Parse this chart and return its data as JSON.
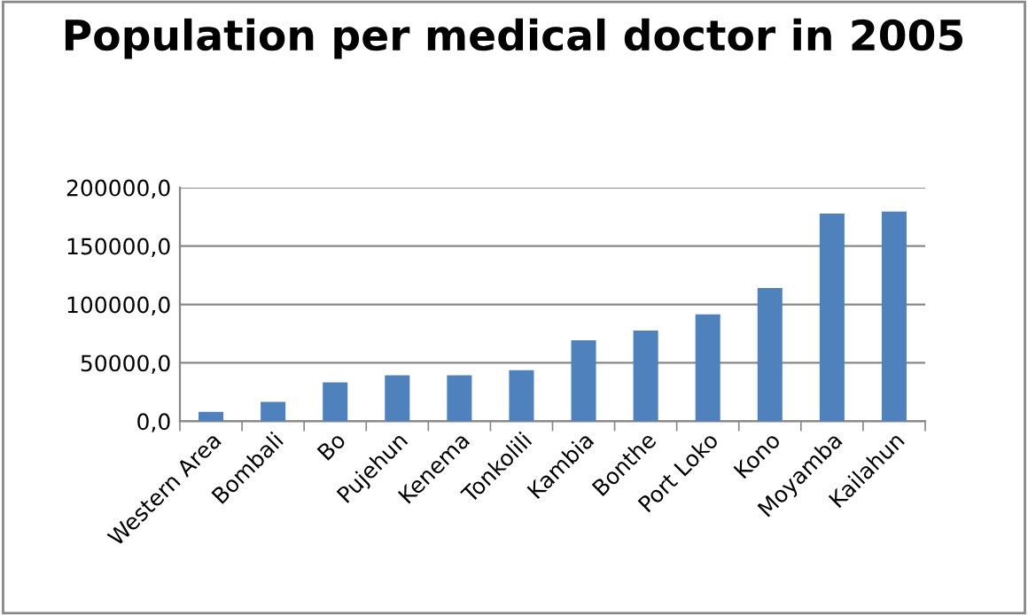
{
  "chart_data": {
    "type": "bar",
    "title": "Population per medical doctor in 2005",
    "categories": [
      "Western Area",
      "Bombali",
      "Bo",
      "Pujehun",
      "Kenema",
      "Tonkolili",
      "Kambia",
      "Bonthe",
      "Port Loko",
      "Kono",
      "Moyamba",
      "Kailahun"
    ],
    "values": [
      8000,
      16600,
      33200,
      39300,
      39300,
      43800,
      69300,
      77600,
      91400,
      114100,
      177800,
      179500
    ],
    "color": "#4f81bd",
    "ylim": [
      0,
      200000
    ],
    "yticks": [
      {
        "value": 0,
        "label": "0,0"
      },
      {
        "value": 50000,
        "label": "50000,0"
      },
      {
        "value": 100000,
        "label": "100000,0"
      },
      {
        "value": 150000,
        "label": "150000,0"
      },
      {
        "value": 200000,
        "label": "200000,0"
      }
    ],
    "grid": "y",
    "legend": false
  }
}
